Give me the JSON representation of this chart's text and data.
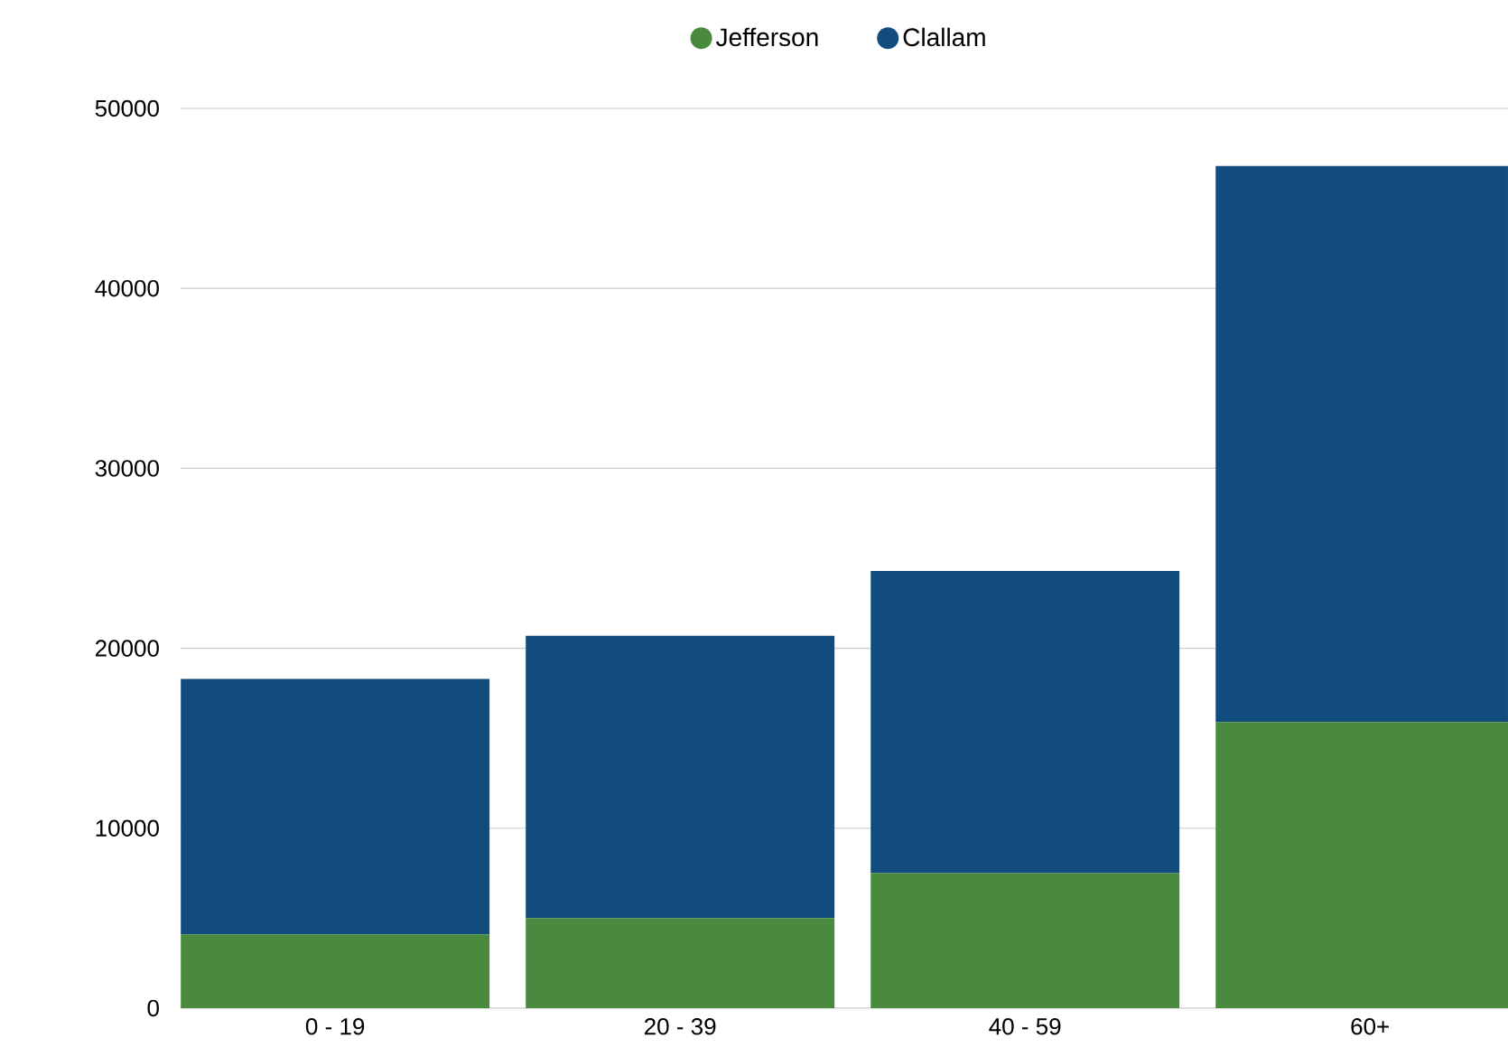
{
  "chart_data": {
    "type": "bar",
    "stacked": true,
    "categories": [
      "0 - 19",
      "20 - 39",
      "40 - 59",
      "60+"
    ],
    "series": [
      {
        "name": "Jefferson",
        "color": "#4a8a3f",
        "values": [
          4100,
          5000,
          7500,
          15900
        ]
      },
      {
        "name": "Clallam",
        "color": "#124c7e",
        "values": [
          14200,
          15700,
          16800,
          30900
        ]
      }
    ],
    "ylim": [
      0,
      50000
    ],
    "yticks": [
      0,
      10000,
      20000,
      30000,
      40000,
      50000
    ],
    "grid": "y",
    "legend": "top"
  }
}
